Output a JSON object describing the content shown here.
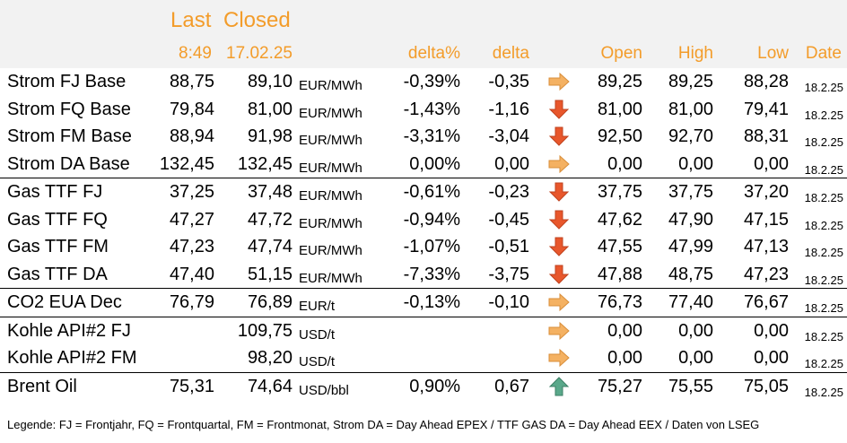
{
  "header": {
    "last": "Last",
    "closed": "Closed",
    "last_time": "8:49",
    "closed_date": "17.02.25",
    "delta_pct": "delta%",
    "delta": "delta",
    "open": "Open",
    "high": "High",
    "low": "Low",
    "date": "Date"
  },
  "colors": {
    "header_text": "#f39c2a",
    "arrow_sideways": "#f4b162",
    "arrow_down": "#e8572c",
    "arrow_up": "#5aa88a"
  },
  "rows": [
    {
      "name": "Strom FJ Base",
      "last": "88,75",
      "closed": "89,10",
      "unit": "EUR/MWh",
      "delta_pct": "-0,39%",
      "delta": "-0,35",
      "trend": "right-arrow-icon",
      "open": "89,25",
      "high": "89,25",
      "low": "88,28",
      "date": "18.2.25",
      "sep": false
    },
    {
      "name": "Strom FQ Base",
      "last": "79,84",
      "closed": "81,00",
      "unit": "EUR/MWh",
      "delta_pct": "-1,43%",
      "delta": "-1,16",
      "trend": "down-arrow-icon",
      "open": "81,00",
      "high": "81,00",
      "low": "79,41",
      "date": "18.2.25",
      "sep": false
    },
    {
      "name": "Strom FM Base",
      "last": "88,94",
      "closed": "91,98",
      "unit": "EUR/MWh",
      "delta_pct": "-3,31%",
      "delta": "-3,04",
      "trend": "down-arrow-icon",
      "open": "92,50",
      "high": "92,70",
      "low": "88,31",
      "date": "18.2.25",
      "sep": false
    },
    {
      "name": "Strom DA Base",
      "last": "132,45",
      "closed": "132,45",
      "unit": "EUR/MWh",
      "delta_pct": "0,00%",
      "delta": "0,00",
      "trend": "right-arrow-icon",
      "open": "0,00",
      "high": "0,00",
      "low": "0,00",
      "date": "18.2.25",
      "sep": false
    },
    {
      "name": "Gas TTF FJ",
      "last": "37,25",
      "closed": "37,48",
      "unit": "EUR/MWh",
      "delta_pct": "-0,61%",
      "delta": "-0,23",
      "trend": "down-arrow-icon",
      "open": "37,75",
      "high": "37,75",
      "low": "37,20",
      "date": "18.2.25",
      "sep": true
    },
    {
      "name": "Gas TTF FQ",
      "last": "47,27",
      "closed": "47,72",
      "unit": "EUR/MWh",
      "delta_pct": "-0,94%",
      "delta": "-0,45",
      "trend": "down-arrow-icon",
      "open": "47,62",
      "high": "47,90",
      "low": "47,15",
      "date": "18.2.25",
      "sep": false
    },
    {
      "name": "Gas TTF FM",
      "last": "47,23",
      "closed": "47,74",
      "unit": "EUR/MWh",
      "delta_pct": "-1,07%",
      "delta": "-0,51",
      "trend": "down-arrow-icon",
      "open": "47,55",
      "high": "47,99",
      "low": "47,13",
      "date": "18.2.25",
      "sep": false
    },
    {
      "name": "Gas TTF DA",
      "last": "47,40",
      "closed": "51,15",
      "unit": "EUR/MWh",
      "delta_pct": "-7,33%",
      "delta": "-3,75",
      "trend": "down-arrow-icon",
      "open": "47,88",
      "high": "48,75",
      "low": "47,23",
      "date": "18.2.25",
      "sep": false
    },
    {
      "name": "CO2 EUA Dec",
      "last": "76,79",
      "closed": "76,89",
      "unit": "EUR/t",
      "delta_pct": "-0,13%",
      "delta": "-0,10",
      "trend": "right-arrow-icon",
      "open": "76,73",
      "high": "77,40",
      "low": "76,67",
      "date": "18.2.25",
      "sep": true
    },
    {
      "name": "Kohle API#2 FJ",
      "last": "",
      "closed": "109,75",
      "unit": "USD/t",
      "delta_pct": "",
      "delta": "",
      "trend": "right-arrow-icon",
      "open": "0,00",
      "high": "0,00",
      "low": "0,00",
      "date": "18.2.25",
      "sep": true
    },
    {
      "name": "Kohle API#2 FM",
      "last": "",
      "closed": "98,20",
      "unit": "USD/t",
      "delta_pct": "",
      "delta": "",
      "trend": "right-arrow-icon",
      "open": "0,00",
      "high": "0,00",
      "low": "0,00",
      "date": "18.2.25",
      "sep": false
    },
    {
      "name": "Brent Oil",
      "last": "75,31",
      "closed": "74,64",
      "unit": "USD/bbl",
      "delta_pct": "0,90%",
      "delta": "0,67",
      "trend": "up-arrow-icon",
      "open": "75,27",
      "high": "75,55",
      "low": "75,05",
      "date": "18.2.25",
      "sep": true
    }
  ],
  "legend": "Legende: FJ = Frontjahr, FQ = Frontquartal, FM = Frontmonat, Strom DA = Day Ahead EPEX / TTF GAS DA = Day Ahead EEX / Daten von LSEG"
}
